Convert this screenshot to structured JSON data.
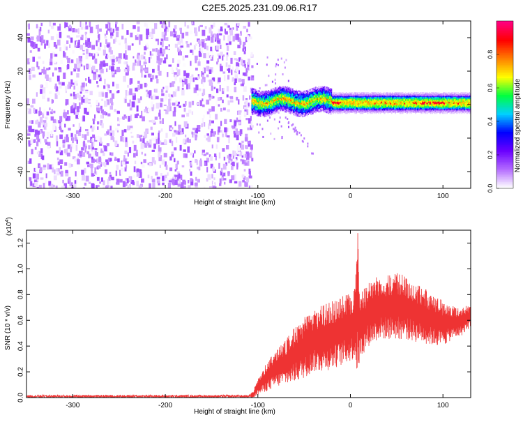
{
  "page_title": "C2E5.2025.231.09.06.R17",
  "chart_data": [
    {
      "type": "heatmap",
      "xlabel": "Height of straight line (km)",
      "ylabel": "Frequency (Hz)",
      "xlim": [
        -350,
        130
      ],
      "ylim": [
        -50,
        50
      ],
      "x_ticks": [
        -300,
        -200,
        -100,
        0,
        100
      ],
      "y_ticks": [
        -40,
        -20,
        0,
        20,
        40
      ],
      "colorbar": {
        "label": "Normalized spectral amplitude",
        "range": [
          0.0,
          1.0
        ],
        "ticks": [
          "0.0",
          "0.2",
          "0.4",
          "0.6",
          "0.8"
        ],
        "ticks_values": [
          0.0,
          0.2,
          0.4,
          0.6,
          0.8
        ],
        "colors": [
          "#ffffff",
          "#b36bff",
          "#6a00ff",
          "#0000ff",
          "#00d0ff",
          "#00ff40",
          "#ffff00",
          "#ff8000",
          "#ff0000",
          "#ff0080"
        ]
      },
      "regions": [
        {
          "label": "noise",
          "x": [
            -350,
            -107
          ],
          "freq": [
            -50,
            50
          ],
          "amplitude": [
            0.0,
            0.15
          ]
        },
        {
          "label": "signal",
          "x": [
            -107,
            130
          ],
          "center_freq_hz": 1,
          "half_width_hz": 4,
          "amplitude_range": [
            0.15,
            0.95
          ]
        }
      ]
    },
    {
      "type": "line",
      "xlabel": "Height of straight line (km)",
      "ylabel": "SNR (10 * v/v)",
      "y_multiplier": "(x10",
      "y_multiplier_exp": "4",
      "y_multiplier_close": ")",
      "xlim": [
        -350,
        130
      ],
      "ylim": [
        0,
        1.3
      ],
      "x_ticks": [
        -300,
        -200,
        -100,
        0,
        100
      ],
      "y_ticks": [
        "0.0",
        "0.2",
        "0.4",
        "0.6",
        "0.8",
        "1.0",
        "1.2"
      ],
      "y_tick_values": [
        0.0,
        0.2,
        0.4,
        0.6,
        0.8,
        1.0,
        1.2
      ],
      "color": "#ee3333",
      "envelope": {
        "x": [
          -350,
          -110,
          -105,
          -100,
          -90,
          -80,
          -70,
          -60,
          -50,
          -40,
          -30,
          -20,
          -10,
          0,
          5,
          8,
          10,
          20,
          30,
          40,
          50,
          60,
          70,
          80,
          90,
          100,
          110,
          120,
          130
        ],
        "upper": [
          0.02,
          0.02,
          0.05,
          0.15,
          0.28,
          0.38,
          0.45,
          0.55,
          0.62,
          0.68,
          0.72,
          0.75,
          0.78,
          0.82,
          0.88,
          1.3,
          0.8,
          0.9,
          0.95,
          0.97,
          0.97,
          0.95,
          0.9,
          0.85,
          0.8,
          0.75,
          0.72,
          0.7,
          0.73
        ],
        "lower": [
          0.0,
          0.0,
          0.0,
          0.02,
          0.05,
          0.08,
          0.1,
          0.12,
          0.15,
          0.2,
          0.2,
          0.22,
          0.25,
          0.28,
          0.3,
          0.1,
          0.3,
          0.4,
          0.45,
          0.45,
          0.45,
          0.45,
          0.43,
          0.42,
          0.4,
          0.4,
          0.45,
          0.48,
          0.55
        ]
      }
    }
  ]
}
